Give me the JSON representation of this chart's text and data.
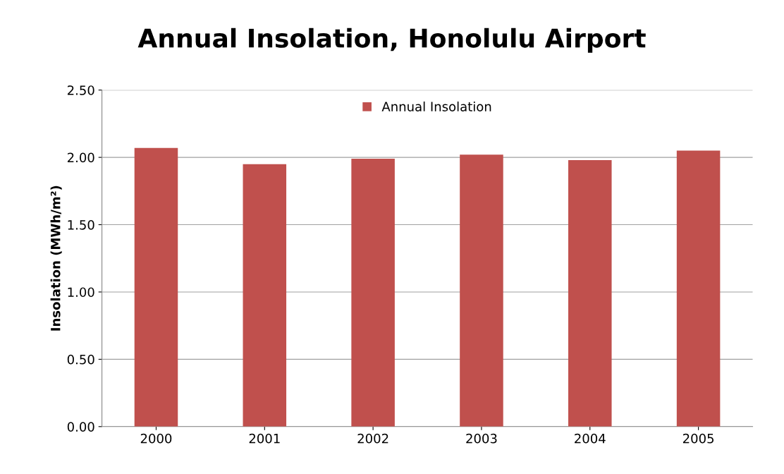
{
  "chart_data": {
    "type": "bar",
    "title": "Annual Insolation, Honolulu Airport",
    "ylabel": "Insolation (MWh/m²)",
    "categories": [
      "2000",
      "2001",
      "2002",
      "2003",
      "2004",
      "2005"
    ],
    "series": [
      {
        "name": "Annual Insolation",
        "color": "#c0504d",
        "values": [
          2.07,
          1.95,
          1.99,
          2.02,
          1.98,
          2.05
        ]
      }
    ],
    "ylim": [
      0,
      2.5
    ],
    "yticks": [
      {
        "value": 0,
        "label": "0.00"
      },
      {
        "value": 0.5,
        "label": "0.50"
      },
      {
        "value": 1.0,
        "label": "1.00"
      },
      {
        "value": 1.5,
        "label": "1.50"
      },
      {
        "value": 2.0,
        "label": "2.00"
      },
      {
        "value": 2.5,
        "label": "2.50"
      }
    ],
    "grid": "y",
    "legend": "top"
  }
}
